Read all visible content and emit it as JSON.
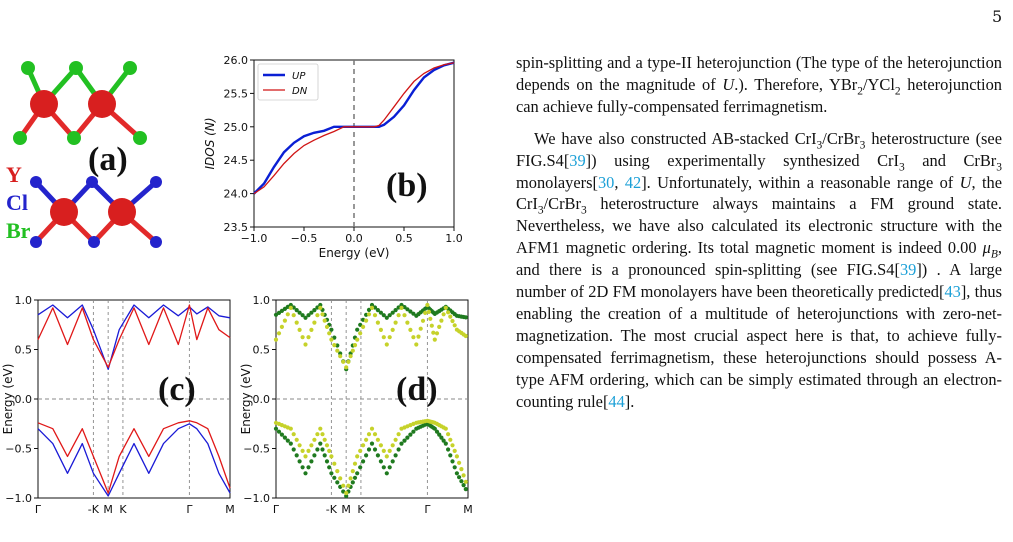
{
  "page_number": "5",
  "structure": {
    "panel_a_label": "(a)",
    "element_y": "Y",
    "element_cl": "Cl",
    "element_br": "Br",
    "colors": {
      "Y": "#d81f1f",
      "Cl": "#2424cc",
      "Br": "#22c022",
      "bond_red": "#e22a2a"
    }
  },
  "chart_data": [
    {
      "panel": "(b)",
      "type": "line",
      "xlabel": "Energy (eV)",
      "ylabel": "IDOS (N)",
      "xlim": [
        -1.0,
        1.0
      ],
      "ylim": [
        23.5,
        26.0
      ],
      "x_ticks": [
        "−1.0",
        "−0.5",
        "0.0",
        "0.5",
        "1.0"
      ],
      "y_ticks": [
        "23.5",
        "24.0",
        "24.5",
        "25.0",
        "25.5",
        "26.0"
      ],
      "legend_position": "top-left",
      "fermi_line_x": 0.0,
      "series": [
        {
          "name": "UP",
          "color": "#0a1fd4",
          "x": [
            -1.0,
            -0.9,
            -0.8,
            -0.7,
            -0.6,
            -0.5,
            -0.4,
            -0.3,
            -0.2,
            -0.1,
            0.0,
            0.1,
            0.2,
            0.25,
            0.3,
            0.4,
            0.5,
            0.6,
            0.7,
            0.8,
            0.9,
            1.0
          ],
          "y": [
            24.0,
            24.15,
            24.4,
            24.62,
            24.76,
            24.86,
            24.91,
            24.94,
            25.0,
            25.0,
            25.0,
            25.0,
            25.0,
            25.0,
            25.03,
            25.15,
            25.32,
            25.55,
            25.74,
            25.85,
            25.92,
            25.96
          ]
        },
        {
          "name": "DN",
          "color": "#d01515",
          "x": [
            -1.0,
            -0.9,
            -0.8,
            -0.7,
            -0.6,
            -0.5,
            -0.4,
            -0.3,
            -0.2,
            -0.1,
            0.0,
            0.1,
            0.2,
            0.25,
            0.3,
            0.4,
            0.5,
            0.6,
            0.7,
            0.8,
            0.9,
            1.0
          ],
          "y": [
            24.0,
            24.1,
            24.27,
            24.45,
            24.6,
            24.72,
            24.8,
            24.87,
            24.93,
            25.0,
            25.0,
            25.0,
            25.0,
            25.02,
            25.1,
            25.3,
            25.5,
            25.68,
            25.8,
            25.88,
            25.93,
            25.96
          ]
        }
      ]
    },
    {
      "panel": "(c)",
      "type": "line",
      "ylabel": "Energy (eV)",
      "ylim": [
        -1.0,
        1.0
      ],
      "x_ticks": [
        "Γ",
        "-K",
        "M",
        "K",
        "Γ",
        "M"
      ],
      "y_ticks": [
        "−1.0",
        "−0.5",
        "0.0",
        "0.5",
        "1.0"
      ],
      "fermi_level": 0.0,
      "series": [
        {
          "name": "",
          "color": "#1a1ad6",
          "x": [
            0,
            0.4,
            0.8,
            1.2,
            1.5,
            1.9,
            2.2,
            2.6,
            3.0,
            3.4,
            3.8,
            4.1,
            4.3,
            4.6,
            4.9,
            5.2
          ],
          "y": [
            0.85,
            0.95,
            0.82,
            0.95,
            0.7,
            0.3,
            0.7,
            0.95,
            0.82,
            0.95,
            0.84,
            0.93,
            0.86,
            0.93,
            0.84,
            0.82
          ]
        },
        {
          "name": "",
          "color": "#e01818",
          "x": [
            0,
            0.4,
            0.8,
            1.2,
            1.5,
            1.9,
            2.2,
            2.6,
            3.0,
            3.4,
            3.8,
            4.1,
            4.3,
            4.6,
            4.9,
            5.2
          ],
          "y": [
            0.6,
            0.92,
            0.55,
            0.92,
            0.6,
            0.32,
            0.6,
            0.92,
            0.55,
            0.92,
            0.55,
            0.95,
            0.6,
            0.92,
            0.7,
            0.62
          ]
        },
        {
          "name": "",
          "color": "#1a1ad6",
          "x": [
            0,
            0.4,
            0.8,
            1.2,
            1.5,
            1.9,
            2.2,
            2.6,
            3.0,
            3.4,
            3.8,
            4.1,
            4.3,
            4.6,
            4.9,
            5.2
          ],
          "y": [
            -0.3,
            -0.45,
            -0.75,
            -0.45,
            -0.75,
            -0.98,
            -0.75,
            -0.45,
            -0.75,
            -0.45,
            -0.3,
            -0.25,
            -0.3,
            -0.45,
            -0.75,
            -0.95
          ]
        },
        {
          "name": "",
          "color": "#e01818",
          "x": [
            0,
            0.4,
            0.8,
            1.2,
            1.5,
            1.9,
            2.2,
            2.6,
            3.0,
            3.4,
            3.8,
            4.1,
            4.3,
            4.6,
            4.9,
            5.2
          ],
          "y": [
            -0.24,
            -0.3,
            -0.58,
            -0.3,
            -0.58,
            -0.95,
            -0.58,
            -0.3,
            -0.58,
            -0.3,
            -0.24,
            -0.22,
            -0.24,
            -0.3,
            -0.58,
            -0.9
          ]
        }
      ]
    },
    {
      "panel": "(d)",
      "type": "scatter",
      "ylabel": "Energy (eV)",
      "ylim": [
        -1.0,
        1.0
      ],
      "x_ticks": [
        "Γ",
        "-K",
        "M",
        "K",
        "Γ",
        "M"
      ],
      "y_ticks": [
        "−1.0",
        "−0.5",
        "0.0",
        "0.5",
        "1.0"
      ],
      "fermi_level": 0.0,
      "series": [
        {
          "name": "",
          "color": "#1f7a1f",
          "x": [
            0,
            0.4,
            0.8,
            1.2,
            1.5,
            1.9,
            2.2,
            2.6,
            3.0,
            3.4,
            3.8,
            4.1,
            4.3,
            4.6,
            4.9,
            5.2
          ],
          "y": [
            0.85,
            0.95,
            0.82,
            0.95,
            0.7,
            0.3,
            0.7,
            0.95,
            0.82,
            0.95,
            0.84,
            0.93,
            0.86,
            0.93,
            0.84,
            0.82
          ]
        },
        {
          "name": "",
          "color": "#c6d22a",
          "x": [
            0,
            0.4,
            0.8,
            1.2,
            1.5,
            1.9,
            2.2,
            2.6,
            3.0,
            3.4,
            3.8,
            4.1,
            4.3,
            4.6,
            4.9,
            5.2
          ],
          "y": [
            0.6,
            0.92,
            0.55,
            0.92,
            0.6,
            0.32,
            0.6,
            0.92,
            0.55,
            0.92,
            0.55,
            0.95,
            0.6,
            0.92,
            0.7,
            0.62
          ]
        },
        {
          "name": "",
          "color": "#1f7a1f",
          "x": [
            0,
            0.4,
            0.8,
            1.2,
            1.5,
            1.9,
            2.2,
            2.6,
            3.0,
            3.4,
            3.8,
            4.1,
            4.3,
            4.6,
            4.9,
            5.2
          ],
          "y": [
            -0.3,
            -0.45,
            -0.75,
            -0.45,
            -0.75,
            -0.98,
            -0.75,
            -0.45,
            -0.75,
            -0.45,
            -0.3,
            -0.25,
            -0.3,
            -0.45,
            -0.75,
            -0.95
          ]
        },
        {
          "name": "",
          "color": "#c6d22a",
          "x": [
            0,
            0.4,
            0.8,
            1.2,
            1.5,
            1.9,
            2.2,
            2.6,
            3.0,
            3.4,
            3.8,
            4.1,
            4.3,
            4.6,
            4.9,
            5.2
          ],
          "y": [
            -0.24,
            -0.3,
            -0.58,
            -0.3,
            -0.58,
            -0.95,
            -0.58,
            -0.3,
            -0.58,
            -0.3,
            -0.24,
            -0.22,
            -0.24,
            -0.3,
            -0.58,
            -0.9
          ]
        }
      ]
    }
  ],
  "body": {
    "p1_a": "spin-splitting and a type-II heterojunction (The type of the heterojunction depends on the magnitude of ",
    "p1_U": "U",
    "p1_b": ".). Therefore, YBr",
    "p1_sub1": "2",
    "p1_c": "/YCl",
    "p1_sub2": "2",
    "p1_d": " heterojunction can achieve fully-compensated ferrimagnetism.",
    "p2_a": "We have also constructed AB-stacked CrI",
    "p2_sub1": "3",
    "p2_b": "/CrBr",
    "p2_sub2": "3",
    "p2_c": " heterostructure (see FIG.S4[",
    "p2_ref1": "39",
    "p2_d": "]) using experimentally synthesized CrI",
    "p2_sub3": "3",
    "p2_e": " and CrBr",
    "p2_sub4": "3",
    "p2_f": " monolayers[",
    "p2_ref2": "30",
    "p2_g": ", ",
    "p2_ref3": "42",
    "p2_h": "]. Unfortunately, within a reasonable range of ",
    "p2_U": "U",
    "p2_i": ", the CrI",
    "p2_sub5": "3",
    "p2_j": "/CrBr",
    "p2_sub6": "3",
    "p2_k": " heterostructure always maintains a FM ground state. Nevertheless, we have also calculated its electronic structure with the AFM1 magnetic ordering. Its total magnetic moment is indeed 0.00 ",
    "p2_mu": "μ",
    "p2_subB": "B",
    "p2_l": ", and there is a pronounced spin-splitting (see FIG.S4[",
    "p2_ref4": "39",
    "p2_m": "]) . A large number of 2D FM monolayers have been theoretically predicted[",
    "p2_ref5": "43",
    "p2_n": "], thus enabling the creation of a multitude of heterojunctions with zero-net-magnetization. The most crucial aspect here is that, to achieve fully-compensated ferrimagnetism, these heterojunctions should possess A-type AFM ordering, which can be simply estimated through an electron-counting rule[",
    "p2_ref6": "44",
    "p2_o": "]."
  }
}
